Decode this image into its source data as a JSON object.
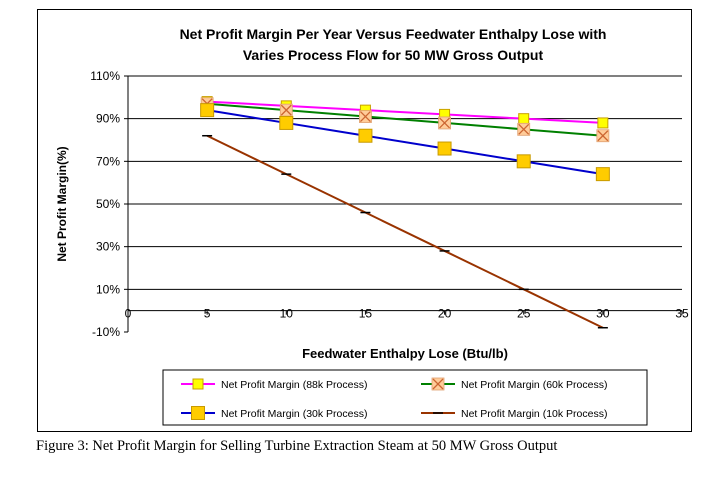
{
  "chart_data": {
    "type": "line",
    "title_lines": [
      "Net Profit Margin Per Year Versus Feedwater Enthalpy Lose with",
      "Varies Process Flow for 50 MW Gross Output"
    ],
    "xlabel": "Feedwater Enthalpy Lose (Btu/lb)",
    "ylabel": "Net Profit Margin(%)",
    "xlim": [
      0,
      35
    ],
    "ylim": [
      -10,
      110
    ],
    "x_ticks": [
      0,
      5,
      10,
      15,
      20,
      25,
      30,
      35
    ],
    "y_ticks": [
      -10,
      10,
      30,
      50,
      70,
      90,
      110
    ],
    "y_tick_labels": [
      "-10%",
      "10%",
      "30%",
      "50%",
      "70%",
      "90%",
      "110%"
    ],
    "grid": "horizontal",
    "legend_position": "bottom",
    "x": [
      5,
      10,
      15,
      20,
      25,
      30
    ],
    "series": [
      {
        "name": "Net Profit Margin (88k Process)",
        "color": "#ff00ff",
        "marker": "square-yellow",
        "values": [
          98,
          96,
          94,
          92,
          90,
          88
        ]
      },
      {
        "name": "Net Profit Margin (60k Process)",
        "color": "#008000",
        "marker": "x-orange",
        "values": [
          97,
          94,
          91,
          88,
          85,
          82
        ]
      },
      {
        "name": "Net Profit Margin (30k Process)",
        "color": "#0000cc",
        "marker": "square-gold",
        "values": [
          94,
          88,
          82,
          76,
          70,
          64
        ]
      },
      {
        "name": "Net Profit Margin (10k Process)",
        "color": "#993300",
        "marker": "dash",
        "values": [
          82,
          64,
          46,
          28,
          10,
          -8
        ]
      }
    ]
  },
  "caption": "Figure 3: Net Profit Margin for Selling Turbine Extraction Steam at 50 MW Gross Output"
}
